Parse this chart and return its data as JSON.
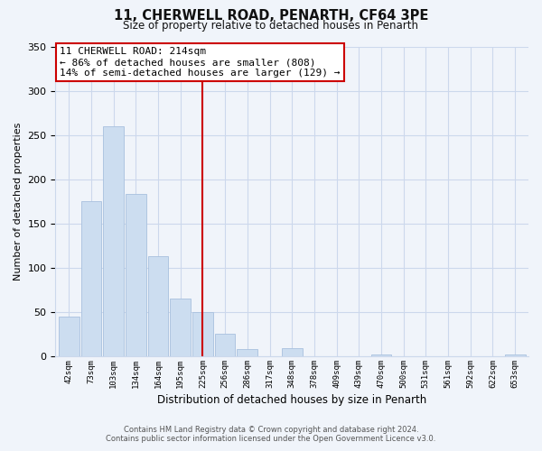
{
  "title": "11, CHERWELL ROAD, PENARTH, CF64 3PE",
  "subtitle": "Size of property relative to detached houses in Penarth",
  "xlabel": "Distribution of detached houses by size in Penarth",
  "ylabel": "Number of detached properties",
  "bin_labels": [
    "42sqm",
    "73sqm",
    "103sqm",
    "134sqm",
    "164sqm",
    "195sqm",
    "225sqm",
    "256sqm",
    "286sqm",
    "317sqm",
    "348sqm",
    "378sqm",
    "409sqm",
    "439sqm",
    "470sqm",
    "500sqm",
    "531sqm",
    "561sqm",
    "592sqm",
    "622sqm",
    "653sqm"
  ],
  "bar_heights": [
    45,
    175,
    260,
    183,
    113,
    65,
    50,
    25,
    8,
    0,
    9,
    0,
    0,
    0,
    2,
    0,
    0,
    0,
    0,
    0,
    2
  ],
  "bar_color": "#ccddf0",
  "bar_edge_color": "#a8c0de",
  "vline_x_index": 6,
  "vline_color": "#cc0000",
  "annotation_title": "11 CHERWELL ROAD: 214sqm",
  "annotation_line1": "← 86% of detached houses are smaller (808)",
  "annotation_line2": "14% of semi-detached houses are larger (129) →",
  "annotation_box_facecolor": "#ffffff",
  "annotation_box_edgecolor": "#cc0000",
  "ylim": [
    0,
    350
  ],
  "yticks": [
    0,
    50,
    100,
    150,
    200,
    250,
    300,
    350
  ],
  "bg_color": "#f0f4fa",
  "grid_color": "#ccd8ec",
  "footer_line1": "Contains HM Land Registry data © Crown copyright and database right 2024.",
  "footer_line2": "Contains public sector information licensed under the Open Government Licence v3.0."
}
